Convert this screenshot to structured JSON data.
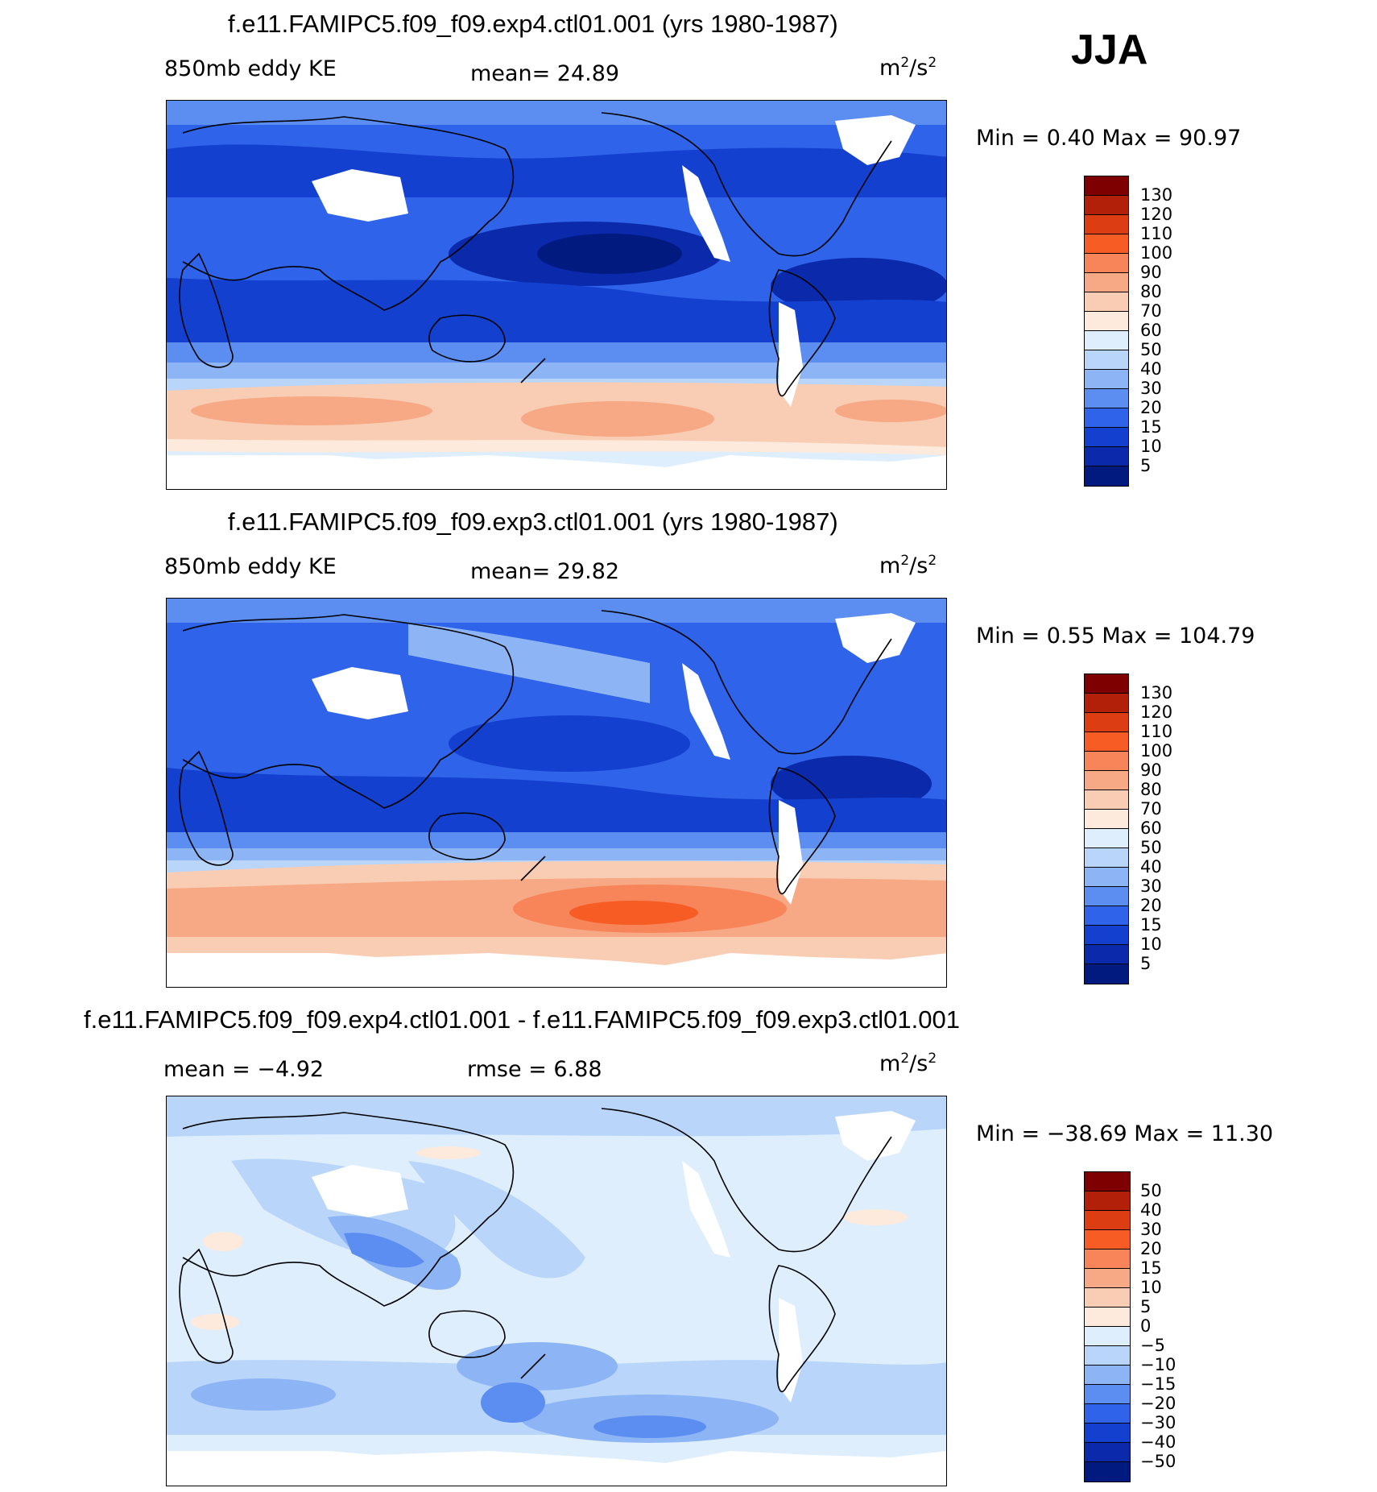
{
  "season": "JJA",
  "panels": [
    {
      "title": "f.e11.FAMIPC5.f09_f09.exp4.ctl01.001 (yrs 1980-1987)",
      "variable": "850mb eddy KE",
      "stat_text": "mean=   24.89",
      "units_base": "m",
      "units_exp1": "2",
      "units_mid": "/s",
      "units_exp2": "2",
      "minmax": "Min =    0.40 Max =   90.97"
    },
    {
      "title": "f.e11.FAMIPC5.f09_f09.exp3.ctl01.001 (yrs 1980-1987)",
      "variable": "850mb eddy KE",
      "stat_text": "mean=   29.82",
      "units_base": "m",
      "units_exp1": "2",
      "units_mid": "/s",
      "units_exp2": "2",
      "minmax": "Min =    0.55 Max = 104.79"
    },
    {
      "title": "f.e11.FAMIPC5.f09_f09.exp4.ctl01.001 - f.e11.FAMIPC5.f09_f09.exp3.ctl01.001",
      "mean_text": "mean =   −4.92",
      "rmse_text": "rmse =    6.88",
      "units_base": "m",
      "units_exp1": "2",
      "units_mid": "/s",
      "units_exp2": "2",
      "minmax": "Min = −38.69 Max =   11.30"
    }
  ],
  "colorbars": {
    "field": {
      "labels": [
        "130",
        "120",
        "110",
        "100",
        "90",
        "80",
        "70",
        "60",
        "50",
        "40",
        "30",
        "20",
        "15",
        "10",
        "5"
      ],
      "colors": [
        "#7f0000",
        "#b3200a",
        "#dd3d12",
        "#f65c23",
        "#f8845a",
        "#f7a885",
        "#f9cdb3",
        "#fdeadd",
        "#deeefc",
        "#b9d6fa",
        "#8db5f5",
        "#5c8df0",
        "#2e63ea",
        "#1440d0",
        "#0a2aab",
        "#001a80"
      ]
    },
    "diff": {
      "labels": [
        "50",
        "40",
        "30",
        "20",
        "15",
        "10",
        "5",
        "0",
        "−5",
        "−10",
        "−15",
        "−20",
        "−30",
        "−40",
        "−50"
      ],
      "colors": [
        "#7f0000",
        "#b3200a",
        "#dd3d12",
        "#f65c23",
        "#f8845a",
        "#f7a885",
        "#f9cdb3",
        "#fdeadd",
        "#deeefc",
        "#b9d6fa",
        "#8db5f5",
        "#5c8df0",
        "#2e63ea",
        "#1440d0",
        "#0a2aab",
        "#001a80"
      ]
    }
  }
}
